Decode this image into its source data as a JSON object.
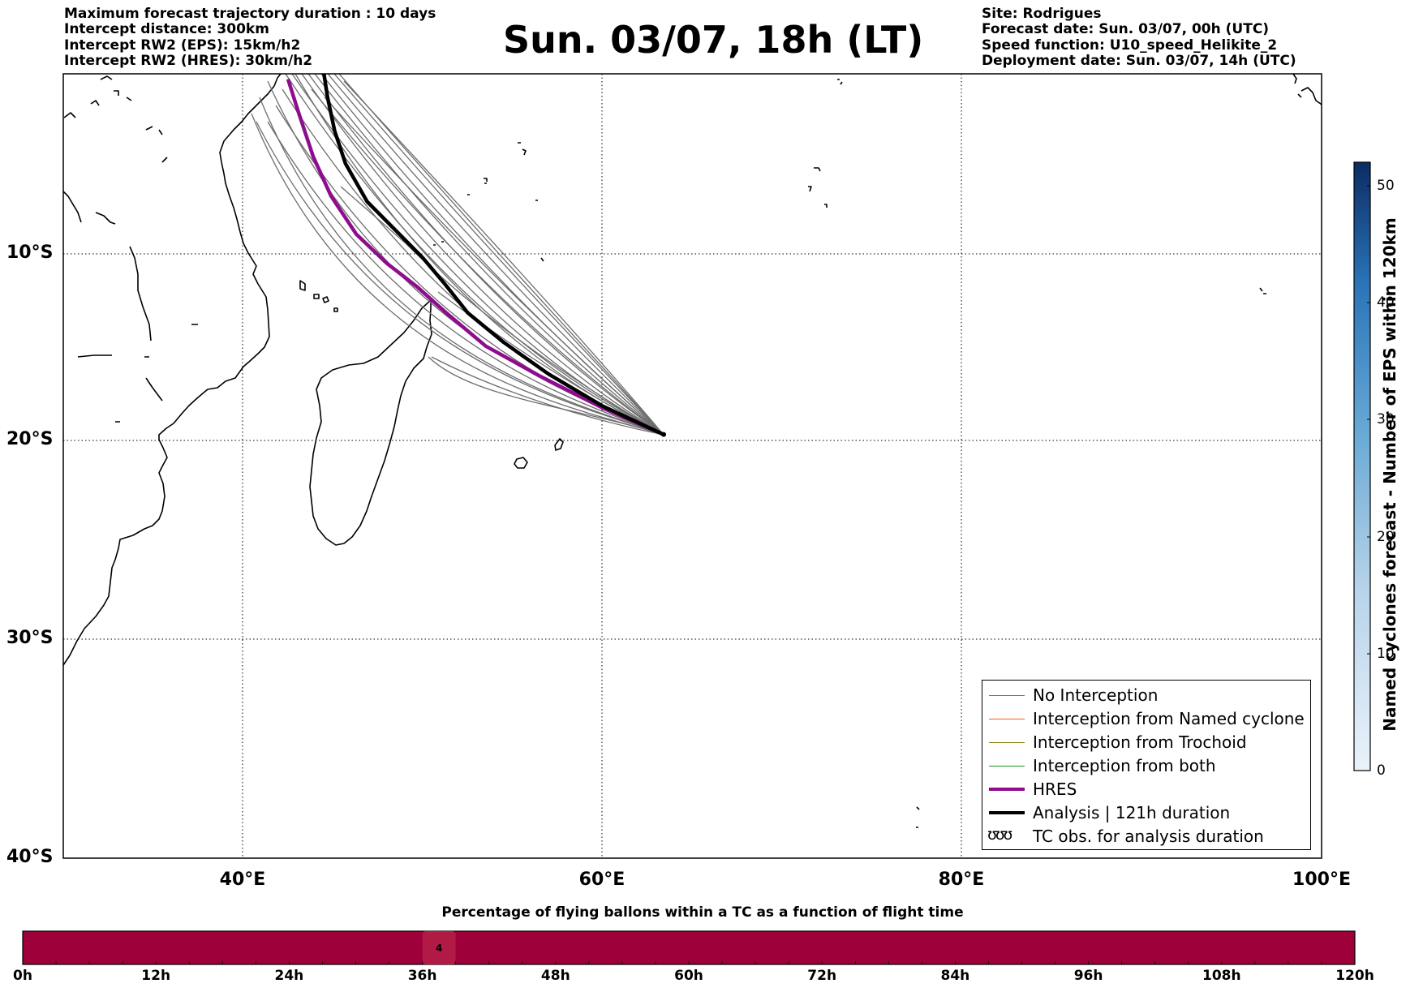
{
  "header_left": [
    "Maximum forecast trajectory duration : 10 days",
    "Intercept distance: 300km",
    "Intercept RW2 (EPS):  15km/h2",
    "Intercept RW2 (HRES): 30km/h2"
  ],
  "header_right": [
    "Site: Rodrigues",
    "Forecast date: Sun. 03/07, 00h (UTC)",
    "Speed function: U10_speed_Helikite_2",
    "Deployment date: Sun. 03/07, 14h (UTC)"
  ],
  "title": "Sun. 03/07, 18h (LT)",
  "map": {
    "lon_range": [
      30,
      100
    ],
    "lat_range": [
      -40,
      0
    ],
    "lat_ticks": [
      {
        "value": -10,
        "label": "10°S"
      },
      {
        "value": -20,
        "label": "20°S"
      },
      {
        "value": -30,
        "label": "30°S"
      },
      {
        "value": -40,
        "label": "40°S"
      }
    ],
    "lon_ticks": [
      {
        "value": 40,
        "label": "40°E"
      },
      {
        "value": 60,
        "label": "60°E"
      },
      {
        "value": 80,
        "label": "80°E"
      },
      {
        "value": 100,
        "label": "100°E"
      }
    ],
    "grid": "dotted",
    "launch_site": {
      "lon": 63.4,
      "lat": -19.7
    },
    "analysis_track": [
      [
        63.4,
        -19.7
      ],
      [
        60.0,
        -18.2
      ],
      [
        57.0,
        -16.5
      ],
      [
        54.5,
        -14.8
      ],
      [
        52.5,
        -13.2
      ],
      [
        51.2,
        -11.6
      ],
      [
        50.0,
        -10.2
      ],
      [
        48.6,
        -8.8
      ],
      [
        46.9,
        -7.1
      ],
      [
        45.7,
        -5.0
      ],
      [
        45.1,
        -3.2
      ],
      [
        44.7,
        -1.3
      ],
      [
        44.5,
        0.0
      ]
    ],
    "hres_track": [
      [
        63.4,
        -19.7
      ],
      [
        60.0,
        -18.3
      ],
      [
        56.5,
        -16.6
      ],
      [
        53.5,
        -15.0
      ],
      [
        51.3,
        -13.2
      ],
      [
        49.7,
        -11.8
      ],
      [
        48.0,
        -10.5
      ],
      [
        46.3,
        -8.9
      ],
      [
        44.9,
        -6.8
      ],
      [
        43.9,
        -4.6
      ],
      [
        43.1,
        -2.2
      ],
      [
        42.5,
        -0.3
      ]
    ]
  },
  "legend": [
    {
      "label": "No Interception",
      "color": "#737373",
      "width": 1.3
    },
    {
      "label": "Interception from Named cyclone",
      "color": "#ff5a1e",
      "width": 1.3
    },
    {
      "label": "Interception from Trochoid",
      "color": "#8c7d10",
      "width": 1.3
    },
    {
      "label": "Interception from both",
      "color": "#1a9a1a",
      "width": 1.3
    },
    {
      "label": "HRES",
      "color": "#8e0d8e",
      "width": 4.5
    },
    {
      "label": "Analysis | 121h duration",
      "color": "#000000",
      "width": 4.5
    },
    {
      "label": "TC obs. for analysis duration",
      "symbol": "ʊʊʊ"
    }
  ],
  "colorbar": {
    "label": "Named cyclones forecast - Number of EPS within 120km",
    "range": [
      0,
      52
    ],
    "ticks": [
      "0",
      "10",
      "20",
      "30",
      "40",
      "50"
    ],
    "color_low": "#e8f0f9",
    "color_high": "#0d2d63"
  },
  "flight_bar": {
    "title": "Percentage of flying ballons within a TC as a function of flight time",
    "ticks": [
      "0h",
      "12h",
      "24h",
      "36h",
      "48h",
      "60h",
      "72h",
      "84h",
      "96h",
      "108h",
      "120h"
    ],
    "color": "#9e003a",
    "highlight": {
      "label": "4",
      "from_h": 36,
      "to_h": 39,
      "color": "#b01a45"
    }
  }
}
